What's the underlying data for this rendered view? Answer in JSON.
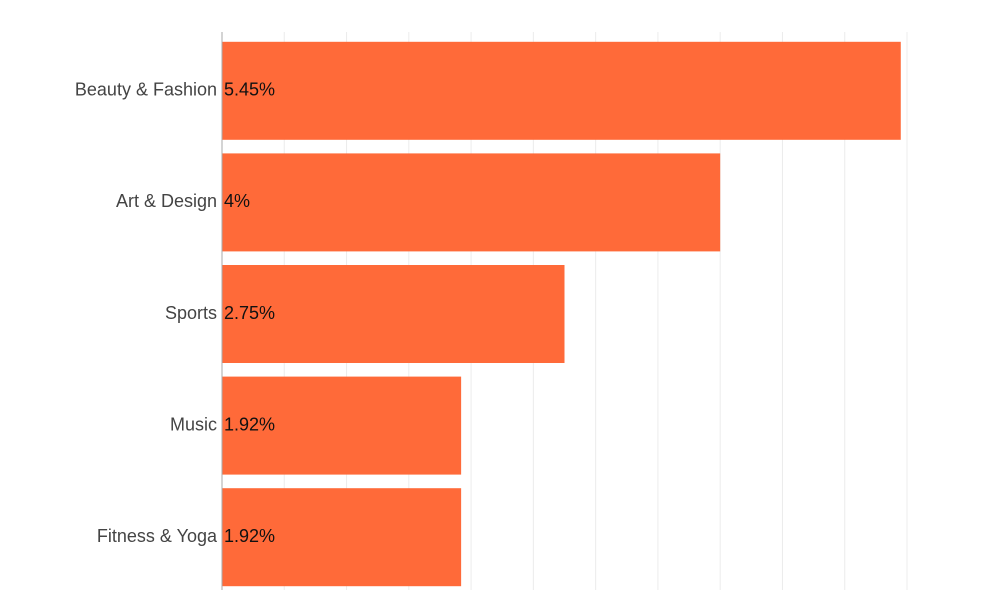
{
  "chart_data": {
    "type": "hbar",
    "categories": [
      "Beauty & Fashion",
      "Art & Design",
      "Sports",
      "Music",
      "Fitness & Yoga"
    ],
    "values": [
      5.45,
      4,
      2.75,
      1.92,
      1.92
    ],
    "value_labels": [
      "5.45%",
      "4%",
      "2.75%",
      "1.92%",
      "1.92%"
    ],
    "color": "#ff6a39",
    "xlim": [
      0,
      5.5
    ],
    "xticks": [
      0,
      0.5,
      1,
      1.5,
      2,
      2.5,
      3,
      3.5,
      4,
      4.5,
      5,
      5.5
    ],
    "grid": true
  }
}
